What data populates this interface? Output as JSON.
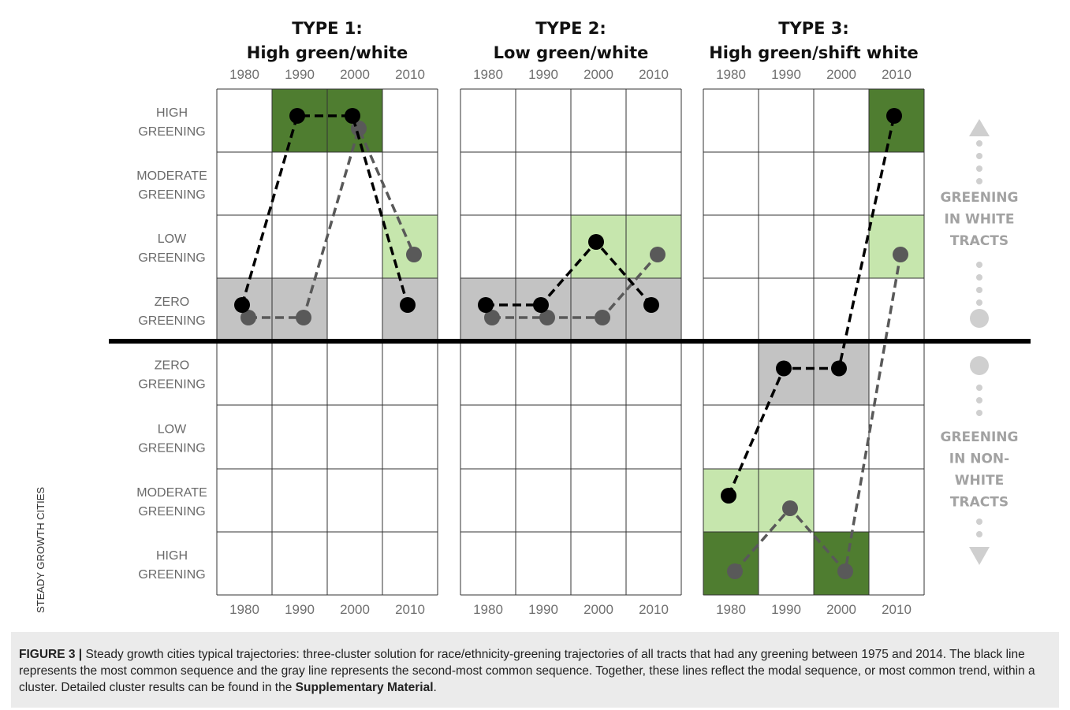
{
  "figure": {
    "panels": [
      {
        "title_line1": "TYPE 1:",
        "title_line2": "High green/white",
        "years": [
          "1980",
          "1990",
          "2000",
          "2010"
        ],
        "cells": [
          {
            "row": 0,
            "col": 1,
            "fill": "dark"
          },
          {
            "row": 0,
            "col": 2,
            "fill": "dark"
          },
          {
            "row": 2,
            "col": 3,
            "fill": "light"
          },
          {
            "row": 3,
            "col": 0,
            "fill": "gray"
          },
          {
            "row": 3,
            "col": 1,
            "fill": "gray"
          },
          {
            "row": 3,
            "col": 3,
            "fill": "gray"
          }
        ],
        "black_sequence": [
          "ZERO GREENING (white)",
          "HIGH GREENING (white)",
          "HIGH GREENING (white)",
          "ZERO GREENING (white)"
        ],
        "gray_sequence": [
          "ZERO GREENING (white)",
          "ZERO GREENING (white)",
          "HIGH GREENING (white)",
          "LOW GREENING (white)"
        ]
      },
      {
        "title_line1": "TYPE 2:",
        "title_line2": "Low green/white",
        "years": [
          "1980",
          "1990",
          "2000",
          "2010"
        ],
        "cells": [
          {
            "row": 2,
            "col": 2,
            "fill": "light"
          },
          {
            "row": 2,
            "col": 3,
            "fill": "light"
          },
          {
            "row": 3,
            "col": 0,
            "fill": "gray"
          },
          {
            "row": 3,
            "col": 1,
            "fill": "gray"
          },
          {
            "row": 3,
            "col": 2,
            "fill": "gray"
          },
          {
            "row": 3,
            "col": 3,
            "fill": "gray"
          }
        ],
        "black_sequence": [
          "ZERO GREENING (white)",
          "ZERO GREENING (white)",
          "LOW GREENING (white)",
          "ZERO GREENING (white)"
        ],
        "gray_sequence": [
          "ZERO GREENING (white)",
          "ZERO GREENING (white)",
          "ZERO GREENING (white)",
          "LOW GREENING (white)"
        ]
      },
      {
        "title_line1": "TYPE 3:",
        "title_line2": "High green/shift white",
        "years": [
          "1980",
          "1990",
          "2000",
          "2010"
        ],
        "cells": [
          {
            "row": 0,
            "col": 3,
            "fill": "dark"
          },
          {
            "row": 2,
            "col": 3,
            "fill": "light"
          },
          {
            "row": 4,
            "col": 1,
            "fill": "gray"
          },
          {
            "row": 4,
            "col": 2,
            "fill": "gray"
          },
          {
            "row": 6,
            "col": 0,
            "fill": "light"
          },
          {
            "row": 6,
            "col": 1,
            "fill": "light"
          },
          {
            "row": 7,
            "col": 0,
            "fill": "dark"
          },
          {
            "row": 7,
            "col": 2,
            "fill": "dark"
          }
        ],
        "black_sequence": [
          "MODERATE GREENING (non-white)",
          "ZERO GREENING (non-white)",
          "ZERO GREENING (non-white)",
          "HIGH GREENING (white)"
        ],
        "gray_sequence": [
          "HIGH GREENING (non-white)",
          "MODERATE GREENING (non-white)",
          "HIGH GREENING (non-white)",
          "LOW GREENING (white)"
        ]
      }
    ],
    "row_labels": [
      [
        "HIGH",
        "GREENING"
      ],
      [
        "MODERATE",
        "GREENING"
      ],
      [
        "LOW",
        "GREENING"
      ],
      [
        "ZERO",
        "GREENING"
      ],
      [
        "ZERO",
        "GREENING"
      ],
      [
        "LOW",
        "GREENING"
      ],
      [
        "MODERATE",
        "GREENING"
      ],
      [
        "HIGH",
        "GREENING"
      ]
    ],
    "side_label_top": [
      "GREENING",
      "IN WHITE",
      "TRACTS"
    ],
    "side_label_bottom": [
      "GREENING",
      "IN NON-",
      "WHITE",
      "TRACTS"
    ],
    "vertical_label": "STEADY GROWTH CITIES",
    "colors": {
      "dark_green": "#4f7d30",
      "light_green": "#c6e6ad",
      "gray_cell": "#c3c3c3",
      "black_line": "#000000",
      "gray_line": "#595959",
      "side_arrow": "#cfcfcf"
    }
  },
  "caption": {
    "label": "FIGURE 3 |",
    "text": " Steady growth cities typical trajectories: three-cluster solution for race/ethnicity-greening trajectories of all tracts that had any greening between 1975 and 2014. The black line represents the most common sequence and the gray line represents the second-most common sequence. Together, these lines reflect the modal sequence, or most common trend, within a cluster. Detailed cluster results can be found in the ",
    "bold_link": "Supplementary Material",
    "end": "."
  }
}
